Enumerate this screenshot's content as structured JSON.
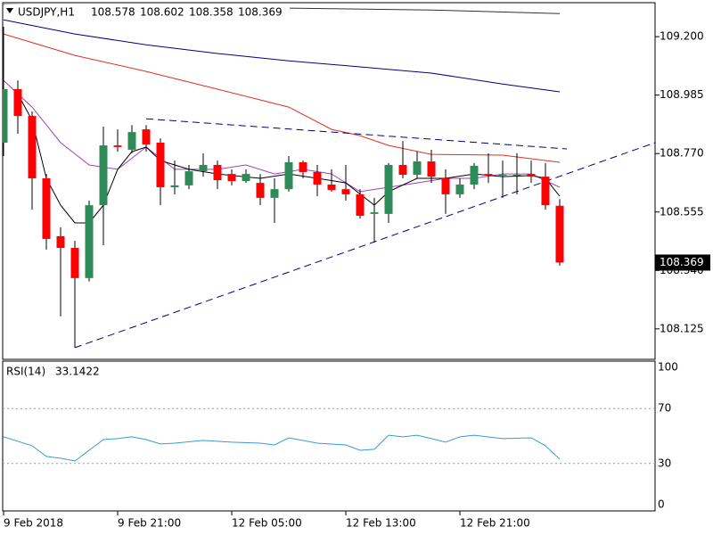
{
  "chart_data": [
    {
      "type": "candlestick",
      "title": "USDJPY,H1",
      "categories": [
        "9 Feb 2018",
        null,
        null,
        null,
        null,
        null,
        null,
        null,
        "9 Feb 21:00",
        null,
        null,
        null,
        null,
        null,
        null,
        null,
        "12 Feb 05:00",
        null,
        null,
        null,
        null,
        null,
        null,
        null,
        "12 Feb 13:00",
        null,
        null,
        null,
        null,
        null,
        null,
        null,
        "12 Feb 21:00",
        null,
        null,
        null,
        null,
        null,
        null,
        null
      ],
      "open": [
        108.81,
        109.007,
        108.908,
        108.679,
        108.466,
        108.423,
        108.312,
        108.58,
        108.8,
        108.784,
        108.859,
        108.81,
        108.646,
        108.653,
        108.705,
        108.728,
        108.695,
        108.669,
        108.662,
        108.607,
        108.639,
        108.738,
        108.702,
        108.656,
        108.639,
        108.62,
        108.548,
        108.548,
        108.728,
        108.692,
        108.741,
        108.679,
        108.62,
        108.656,
        108.695,
        108.689,
        108.689,
        108.695,
        108.685,
        108.578
      ],
      "high": [
        109.236,
        109.039,
        108.925,
        108.695,
        108.499,
        108.449,
        108.597,
        108.869,
        108.859,
        108.875,
        108.875,
        108.826,
        108.744,
        108.728,
        108.771,
        108.744,
        108.712,
        108.712,
        108.695,
        108.679,
        108.761,
        108.744,
        108.728,
        108.712,
        108.728,
        108.639,
        108.607,
        108.735,
        108.816,
        108.777,
        108.784,
        108.712,
        108.679,
        108.735,
        108.771,
        108.744,
        108.771,
        108.744,
        108.735,
        108.602
      ],
      "low": [
        108.761,
        108.843,
        108.564,
        108.417,
        108.171,
        108.056,
        108.299,
        108.433,
        108.777,
        108.771,
        108.777,
        108.58,
        108.62,
        108.639,
        108.685,
        108.639,
        108.653,
        108.662,
        108.58,
        108.515,
        108.63,
        108.679,
        108.613,
        108.63,
        108.597,
        108.531,
        108.443,
        108.515,
        108.679,
        108.679,
        108.662,
        108.548,
        108.607,
        108.639,
        108.662,
        108.607,
        108.62,
        108.662,
        108.564,
        108.358
      ],
      "close": [
        109.007,
        108.908,
        108.679,
        108.456,
        108.423,
        108.312,
        108.58,
        108.8,
        108.794,
        108.849,
        108.803,
        108.646,
        108.653,
        108.705,
        108.728,
        108.672,
        108.669,
        108.695,
        108.607,
        108.639,
        108.738,
        108.702,
        108.656,
        108.636,
        108.62,
        108.541,
        108.554,
        108.728,
        108.692,
        108.741,
        108.685,
        108.62,
        108.656,
        108.725,
        108.689,
        108.692,
        108.692,
        108.685,
        108.58,
        108.369
      ],
      "up_color": "#2e8b57",
      "down_color": "#ff0000",
      "lines": [
        {
          "color": "#333333",
          "x": [
            0,
            10,
            20,
            30,
            39
          ],
          "values": [
            109.318,
            109.311,
            109.305,
            109.298,
            109.285
          ]
        },
        {
          "color": "#000080",
          "x": [
            0,
            5,
            10,
            15,
            20,
            25,
            30,
            35,
            39
          ],
          "values": [
            109.262,
            109.21,
            109.17,
            109.138,
            109.111,
            109.089,
            109.066,
            109.026,
            108.997
          ]
        },
        {
          "color": "#e03020",
          "x": [
            0,
            5,
            10,
            15,
            20,
            23,
            25,
            27,
            30,
            35,
            39
          ],
          "values": [
            109.21,
            109.131,
            109.072,
            109.007,
            108.941,
            108.859,
            108.836,
            108.8,
            108.767,
            108.764,
            108.738
          ]
        },
        {
          "color": "#a040c0",
          "x": [
            0,
            2,
            4,
            6,
            8,
            10,
            12,
            15,
            17,
            19,
            21,
            23,
            25,
            27,
            29,
            31,
            33,
            35,
            37,
            39
          ],
          "values": [
            109.039,
            108.941,
            108.81,
            108.728,
            108.712,
            108.794,
            108.712,
            108.712,
            108.728,
            108.695,
            108.712,
            108.695,
            108.63,
            108.646,
            108.662,
            108.679,
            108.679,
            108.695,
            108.695,
            108.646
          ]
        },
        {
          "color": "#000000",
          "x": [
            1,
            2,
            3,
            4,
            5,
            6,
            7,
            8,
            9,
            10,
            11,
            12,
            13,
            15,
            18,
            20,
            22,
            24,
            26,
            27,
            29,
            31,
            33,
            35,
            37,
            38,
            39
          ],
          "values": [
            108.99,
            108.892,
            108.679,
            108.58,
            108.515,
            108.515,
            108.58,
            108.712,
            108.777,
            108.794,
            108.744,
            108.728,
            108.712,
            108.695,
            108.679,
            108.695,
            108.679,
            108.662,
            108.58,
            108.63,
            108.679,
            108.679,
            108.695,
            108.685,
            108.689,
            108.679,
            108.613
          ]
        },
        {
          "color": "#000080",
          "dash": true,
          "x": [
            10,
            39.5
          ],
          "values": [
            108.898,
            108.787
          ]
        },
        {
          "color": "#000080",
          "dash": true,
          "x": [
            5,
            45.69
          ],
          "values": [
            108.056,
            108.81
          ]
        }
      ],
      "ylim": [
        108.013,
        109.325
      ],
      "yticks": [
        {
          "value": 109.2,
          "label": "109.200"
        },
        108.985,
        {
          "value": 108.77,
          "label": "108.770"
        },
        108.555,
        {
          "value": 108.34,
          "label": "108.340"
        },
        108.125
      ]
    },
    {
      "type": "line",
      "title": "RSI(14)",
      "series": [
        {
          "color": "#3a9ad9",
          "x": [
            0,
            2,
            3,
            4,
            5,
            6,
            7,
            8,
            9,
            10,
            11,
            12,
            14,
            16,
            18,
            19,
            20,
            22,
            24,
            25,
            26,
            27,
            28,
            29,
            30,
            31,
            32,
            33,
            35,
            37,
            38,
            39
          ],
          "values": [
            49.4,
            42.9,
            35.1,
            33.8,
            31.8,
            39.6,
            47.4,
            48.1,
            49.4,
            47.4,
            44.2,
            44.8,
            46.8,
            45.5,
            44.8,
            43.5,
            48.7,
            44.8,
            43.5,
            39.6,
            40.3,
            50.6,
            49.4,
            50.6,
            48.1,
            45.5,
            49.4,
            50.6,
            48.1,
            48.7,
            42.9,
            33.1422
          ]
        }
      ],
      "ylim": [
        0,
        100
      ],
      "yticks": [
        100,
        70,
        30,
        0
      ]
    }
  ]
}
